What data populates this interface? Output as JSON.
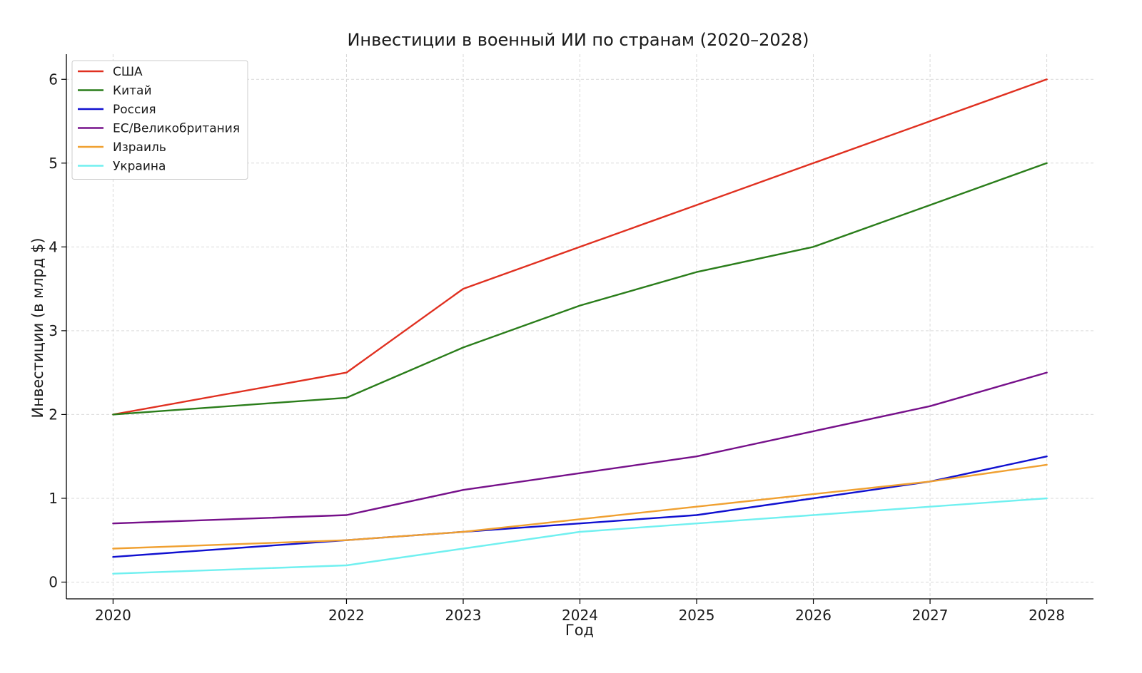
{
  "chart_data": {
    "type": "line",
    "title": "Инвестиции в военный ИИ по странам (2020–2028)",
    "xlabel": "Год",
    "ylabel": "Инвестиции (в млрд $)",
    "x": [
      2020,
      2022,
      2023,
      2024,
      2025,
      2026,
      2027,
      2028
    ],
    "x_tick_labels": [
      "2020",
      "2022",
      "2023",
      "2024",
      "2025",
      "2026",
      "2027",
      "2028"
    ],
    "xlim": [
      2019.6,
      2028.4
    ],
    "ylim": [
      -0.2,
      6.3
    ],
    "y_ticks": [
      0,
      1,
      2,
      3,
      4,
      5,
      6
    ],
    "y_tick_labels": [
      "0",
      "1",
      "2",
      "3",
      "4",
      "5",
      "6"
    ],
    "grid": true,
    "legend_position": "top-left",
    "series": [
      {
        "name": "США",
        "color": "#e03020",
        "values": [
          2.0,
          2.5,
          3.5,
          4.0,
          4.5,
          5.0,
          5.5,
          6.0
        ]
      },
      {
        "name": "Китай",
        "color": "#2a7d1a",
        "values": [
          2.0,
          2.2,
          2.8,
          3.3,
          3.7,
          4.0,
          4.5,
          5.0
        ]
      },
      {
        "name": "Россия",
        "color": "#1010d0",
        "values": [
          0.3,
          0.5,
          0.6,
          0.7,
          0.8,
          1.0,
          1.2,
          1.5
        ]
      },
      {
        "name": "ЕС/Великобритания",
        "color": "#76108a",
        "values": [
          0.7,
          0.8,
          1.1,
          1.3,
          1.5,
          1.8,
          2.1,
          2.5
        ]
      },
      {
        "name": "Израиль",
        "color": "#f0a030",
        "values": [
          0.4,
          0.5,
          0.6,
          0.75,
          0.9,
          1.05,
          1.2,
          1.4
        ]
      },
      {
        "name": "Украина",
        "color": "#70f0f0",
        "values": [
          0.1,
          0.2,
          0.4,
          0.6,
          0.7,
          0.8,
          0.9,
          1.0
        ]
      }
    ]
  }
}
